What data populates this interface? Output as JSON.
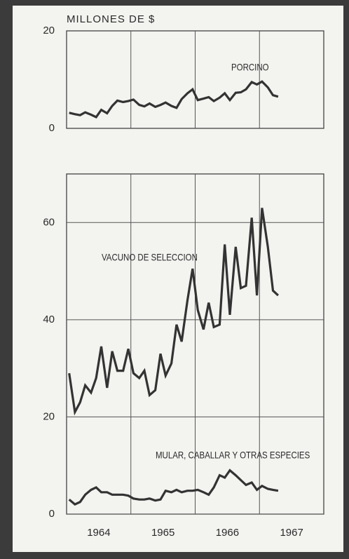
{
  "chart_data": [
    {
      "type": "line",
      "title": "MILLONES DE $",
      "x": [
        1964.04,
        1964.13,
        1964.21,
        1964.29,
        1964.38,
        1964.46,
        1964.54,
        1964.63,
        1964.71,
        1964.79,
        1964.88,
        1964.96,
        1965.04,
        1965.13,
        1965.21,
        1965.29,
        1965.38,
        1965.46,
        1965.54,
        1965.63,
        1965.71,
        1965.79,
        1965.88,
        1965.96,
        1966.04,
        1966.13,
        1966.21,
        1966.29,
        1966.38,
        1966.46,
        1966.54,
        1966.63,
        1966.71,
        1966.79,
        1966.88,
        1966.96,
        1967.04,
        1967.13,
        1967.21,
        1967.29
      ],
      "series": [
        {
          "name": "PORCINO",
          "color": "#333333",
          "values": [
            3.2,
            2.9,
            2.7,
            3.3,
            2.8,
            2.3,
            3.8,
            3.1,
            4.6,
            5.7,
            5.4,
            5.6,
            5.9,
            4.8,
            4.5,
            5.1,
            4.4,
            4.8,
            5.3,
            4.6,
            4.2,
            6.0,
            7.2,
            8.0,
            5.8,
            6.1,
            6.4,
            5.6,
            6.3,
            7.2,
            5.8,
            7.3,
            7.4,
            8.0,
            9.5,
            9.0,
            9.6,
            8.4,
            6.8,
            6.5
          ]
        }
      ],
      "xlim": [
        1964,
        1968
      ],
      "xgrid": [
        1965,
        1966,
        1967
      ],
      "ylim": [
        0,
        20
      ],
      "yticks": [
        0,
        20
      ],
      "grid": false
    },
    {
      "type": "line",
      "x": [
        1964.04,
        1964.13,
        1964.21,
        1964.29,
        1964.38,
        1964.46,
        1964.54,
        1964.63,
        1964.71,
        1964.79,
        1964.88,
        1964.96,
        1965.04,
        1965.13,
        1965.21,
        1965.29,
        1965.38,
        1965.46,
        1965.54,
        1965.63,
        1965.71,
        1965.79,
        1965.88,
        1965.96,
        1966.04,
        1966.13,
        1966.21,
        1966.29,
        1966.38,
        1966.46,
        1966.54,
        1966.63,
        1966.71,
        1966.79,
        1966.88,
        1966.96,
        1967.04,
        1967.13,
        1967.21,
        1967.29
      ],
      "series": [
        {
          "name": "VACUNO DE SELECCION",
          "color": "#333333",
          "values": [
            29,
            21,
            23,
            26.5,
            25,
            28,
            34.5,
            26,
            33.5,
            29.5,
            29.5,
            34,
            29,
            28,
            29.5,
            24.5,
            25.5,
            33,
            28.5,
            31,
            39,
            35.5,
            44,
            50.5,
            42,
            38,
            43.5,
            38.5,
            39,
            55.5,
            41,
            55,
            46.5,
            47,
            61,
            45,
            63,
            55,
            46,
            45
          ]
        },
        {
          "name": "MULAR, CABALLAR Y OTRAS ESPECIES",
          "color": "#333333",
          "values": [
            3,
            2,
            2.5,
            4,
            5,
            5.5,
            4.5,
            4.5,
            4,
            4,
            4,
            3.8,
            3.2,
            3,
            3,
            3.2,
            2.8,
            3,
            4.8,
            4.5,
            5,
            4.5,
            4.8,
            4.8,
            5,
            4.5,
            4,
            5.5,
            8,
            7.5,
            9,
            8,
            7,
            6,
            6.5,
            5,
            5.8,
            5.2,
            5,
            4.8
          ]
        }
      ],
      "xlim": [
        1964,
        1968
      ],
      "xgrid": [
        1965,
        1966,
        1967
      ],
      "xticks": [
        {
          "value": 1964.5,
          "label": "1964"
        },
        {
          "value": 1965.5,
          "label": "1965"
        },
        {
          "value": 1966.5,
          "label": "1966"
        },
        {
          "value": 1967.5,
          "label": "1967"
        }
      ],
      "ylim": [
        0,
        70
      ],
      "yticks": [
        0,
        20,
        40,
        60
      ],
      "grid": true
    }
  ]
}
